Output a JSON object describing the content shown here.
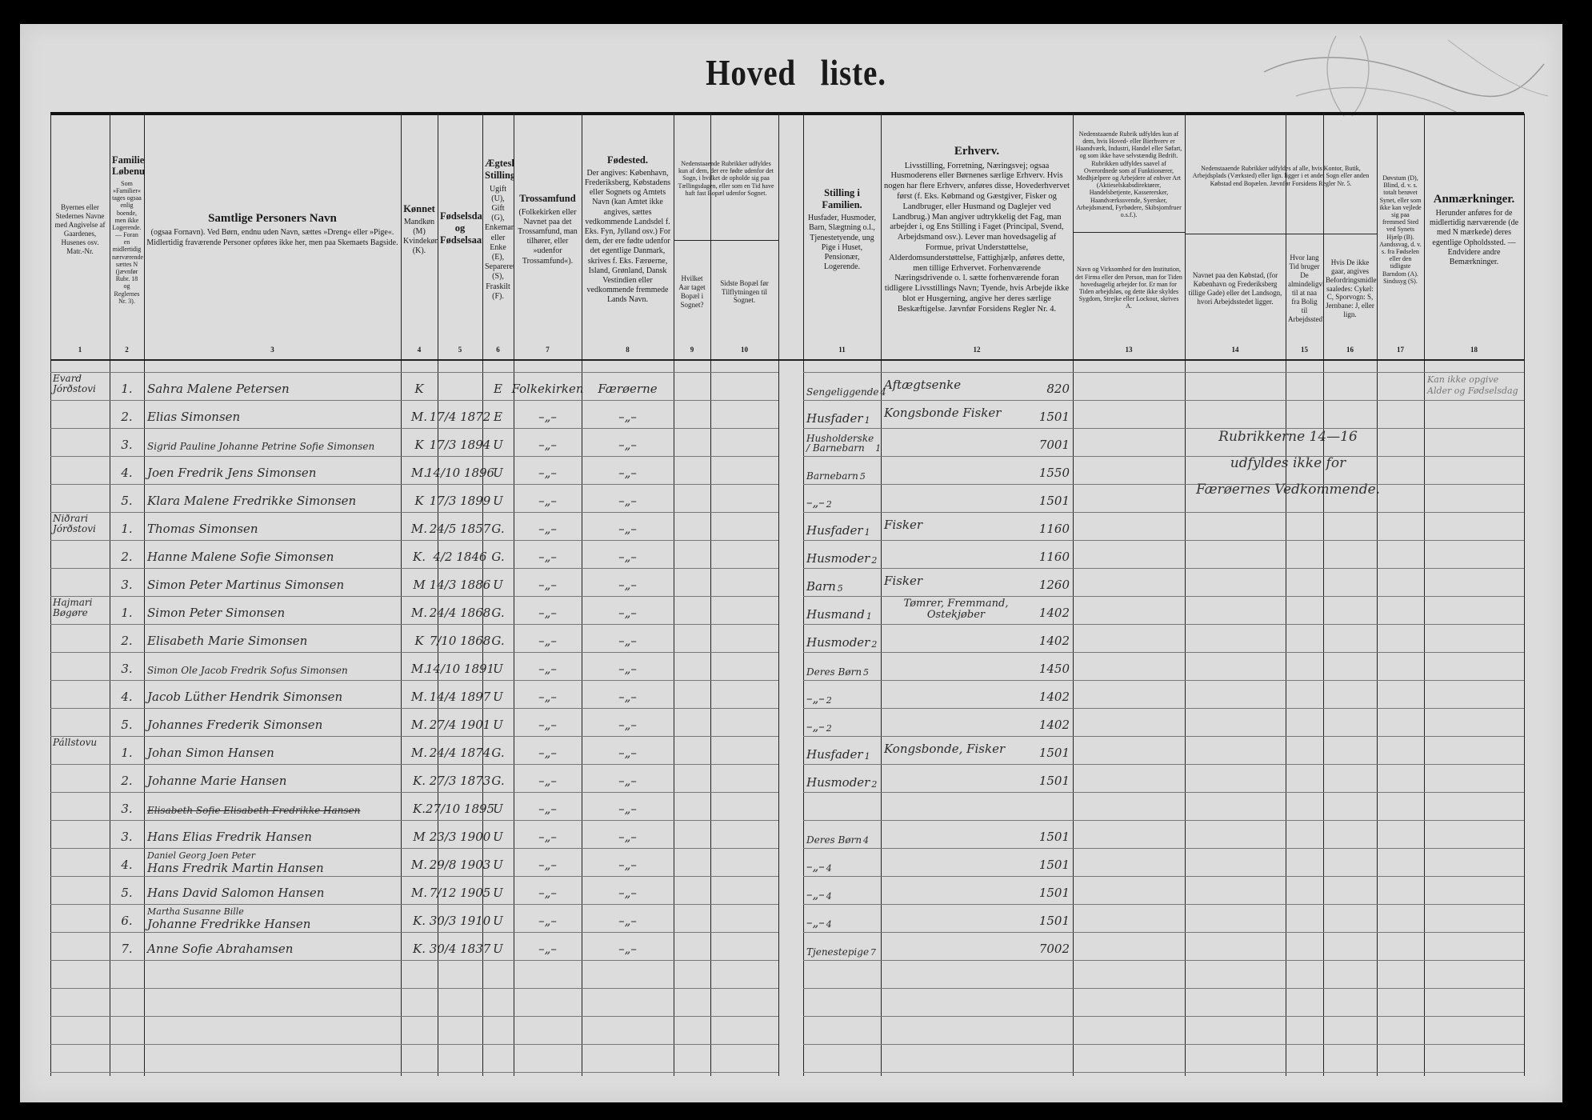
{
  "title": {
    "part1": "Hoved",
    "part2": "liste."
  },
  "header": {
    "c1": {
      "body": "Byernes eller Stedernes Navne med Angivelse af Gaardenes, Husenes osv. Matr.-Nr.",
      "num": "1"
    },
    "c2": {
      "title": "Familiernes Løbenumre.",
      "body": "Som »Familier« tages ogsaa enlig boende, men ikke Logerende. — Foran en midlertidig nærværende sættes N (jævnfør Rubr. 18 og Reglernes Nr. 3).",
      "num": "2"
    },
    "c3": {
      "title": "Samtlige Personers Navn",
      "body": "(ogsaa Fornavn). Ved Børn, endnu uden Navn, sættes »Dreng« eller »Pige«. Midlertidig fraværende Personer opføres ikke her, men paa Skemaets Bagside.",
      "num": "3"
    },
    "c4": {
      "title": "Kønnet",
      "body": "Mandkøn (M) Kvindekøn (K).",
      "num": "4"
    },
    "c5": {
      "title": "Fødselsdag og Fødselsaar.",
      "num": "5"
    },
    "c6": {
      "title": "Ægteskabelig Stilling.",
      "body": "Ugift (U), Gift (G), Enkemand eller Enke (E), Separeret (S), Fraskilt (F).",
      "num": "6"
    },
    "c7": {
      "title": "Trossamfund",
      "body": "(Folkekirken eller Navnet paa det Trossamfund, man tilhører, eller »udenfor Trossamfund«).",
      "num": "7"
    },
    "c8": {
      "title": "Fødested.",
      "body": "Der angives: København, Frederiksberg, Købstadens eller Sognets og Amtets Navn (kan Amtet ikke angives, sættes vedkommende Landsdel f. Eks. Fyn, Jylland osv.) For dem, der ere fødte udenfor det egentlige Danmark, skrives f. Eks. Færøerne, Island, Grønland, Dansk Vestindien eller vedkommende fremmede Lands Navn.",
      "num": "8"
    },
    "c9_10_note": "Nedenstaaende Rubrikker udfyldes kun af dem, der ere fødte udenfor det Sogn, i hvilket de opholde sig paa Tællingsdagen, eller som en Tid have haft fast Bopæl udenfor Sognet.",
    "c9": {
      "body": "Hvilket Aar taget Bopæl i Sognet?",
      "num": "9"
    },
    "c10": {
      "body": "Sidste Bopæl før Tilflytningen til Sognet.",
      "num": "10"
    },
    "c11": {
      "title": "Stilling i Familien.",
      "body": "Husfader, Husmoder, Barn, Slægtning o.l., Tjenestetyende, ung Pige i Huset, Pensionær, Logerende.",
      "num": "11"
    },
    "c12": {
      "title": "Erhverv.",
      "body": "Livsstilling, Forretning, Næringsvej; ogsaa Husmoderens eller Børnenes særlige Erhverv. Hvis nogen har flere Erhverv, anføres disse, Hovederhvervet først (f. Eks. Købmand og Gæstgiver, Fisker og Landbruger, eller Husmand og Daglejer ved Landbrug.) Man angiver udtrykkelig det Fag, man arbejder i, og Ens Stilling i Faget (Principal, Svend, Arbejdsmand osv.). Lever man hovedsagelig af Formue, privat Understøttelse, Alderdomsunderstøttelse, Fattighjælp, anføres dette, men tillige Erhvervet. Forhenværende Næringsdrivende o. l. sætte forhenværende foran tidligere Livsstillings Navn; Tyende, hvis Arbejde ikke blot er Husgerning, angive her deres særlige Beskæftigelse. Jævnfør Forsidens Regler Nr. 4.",
      "num": "12"
    },
    "c13_note": "Nedenstaaende Rubrik udfyldes kun af dem, hvis Hoved- eller Bierhverv er Haandværk, Industri, Handel eller Søfart, og som ikke have selvstændig Bedrift. Rubrikken udfyldes saavel af Overordnede som af Funktionærer, Medhjælpere og Arbejdere af enhver Art (Aktieselskabsdirektører, Handelsbetjente, Kasserersker, Haandværkssvende, Syersker, Arbejdsmænd, Fyrbødere, Skibsjomfruer o.s.f.).",
    "c13": {
      "body": "Navn og Virksomhed for den Institution, det Firma eller den Person, man for Tiden hovedsagelig arbejder for. Er man for Tiden arbejdsløs, og dette ikke skyldes Sygdom, Strejke eller Lockout, skrives A.",
      "num": "13"
    },
    "c14_16_note": "Nedenstaaende Rubrikker udfyldes af alle, hvis Kontor, Butik, Arbejdsplads (Værksted) eller lign. ligger i et andet Sogn eller anden Købstad end Bopælen. Jævnfør Forsidens Regler Nr. 5.",
    "c14": {
      "body": "Navnet paa den Købstad, (for København og Frederiksberg tillige Gade) eller det Landsogn, hvori Arbejdsstedet ligger.",
      "num": "14"
    },
    "c15": {
      "body": "Hvor lang Tid bruger De almindeligvis til at naa fra Bolig til Arbejdssted?",
      "num": "15"
    },
    "c16": {
      "body": "Hvis De ikke gaar, angives Befordringsmidlet saaledes: Cykel: C, Sporvogn: S, Jernbane: J, eller lign.",
      "num": "16"
    },
    "c17": {
      "body": "Døvstum (D), Blind, d. v. s. totalt berøvet Synet, eller som ikke kan vejlede sig paa fremmed Sted ved Synets Hjælp (B). Aandssvag, d. v. s. fra Fødselen eller den tidligste Barndom (A). Sindssyg (S).",
      "num": "17"
    },
    "c18": {
      "title": "Anmærkninger.",
      "body": "Herunder anføres for de midlertidig nærværende (de med N mærkede) deres egentlige Opholdssted. — Endvidere andre Bemærkninger.",
      "num": "18"
    }
  },
  "places": [
    {
      "row": 0,
      "text": "Evard Jórðstovi"
    },
    {
      "row": 5,
      "text": "Niðrari Jórðstovi"
    },
    {
      "row": 8,
      "text": "Hajmari Bøgøre"
    },
    {
      "row": 13,
      "text": "Pállstovu"
    }
  ],
  "rows": [
    {
      "nr": "1.",
      "name": "Sahra Malene Petersen",
      "sex": "K",
      "born": "",
      "marital": "E",
      "religion": "Folkekirken",
      "birthplace": "Færøerne",
      "position": "Sengeliggende",
      "pos_code": "4",
      "occupation": "Aftægtsenke",
      "code": "820"
    },
    {
      "nr": "2.",
      "name": "Elias Simonsen",
      "sex": "M.",
      "born": "17/4 1872",
      "marital": "E",
      "religion": "–„–",
      "birthplace": "–„–",
      "position": "Husfader",
      "pos_code": "1",
      "occupation": "Kongsbonde Fisker",
      "code": "1501"
    },
    {
      "nr": "3.",
      "name": "Sigrid Pauline Johanne Petrine Sofie Simonsen",
      "sex": "K",
      "born": "17/3 1894",
      "marital": "U",
      "religion": "–„–",
      "birthplace": "–„–",
      "position": "Husholderske / Barnebarn",
      "pos_code": "1",
      "occupation": "",
      "code": "7001"
    },
    {
      "nr": "4.",
      "name": "Joen Fredrik Jens Simonsen",
      "sex": "M.",
      "born": "14/10 1896",
      "marital": "U",
      "religion": "–„–",
      "birthplace": "–„–",
      "position": "Barnebarn",
      "pos_code": "5",
      "occupation": "",
      "code": "1550"
    },
    {
      "nr": "5.",
      "name": "Klara Malene Fredrikke Simonsen",
      "sex": "K",
      "born": "17/3 1899",
      "marital": "U",
      "religion": "–„–",
      "birthplace": "–„–",
      "position": "–„–",
      "pos_code": "2",
      "occupation": "",
      "code": "1501"
    },
    {
      "nr": "1.",
      "name": "Thomas Simonsen",
      "sex": "M.",
      "born": "24/5 1857",
      "marital": "G.",
      "religion": "–„–",
      "birthplace": "–„–",
      "position": "Husfader",
      "pos_code": "1",
      "occupation": "Fisker",
      "code": "1160"
    },
    {
      "nr": "2.",
      "name": "Hanne Malene Sofie Simonsen",
      "sex": "K.",
      "born": "4/2 1846",
      "marital": "G.",
      "religion": "–„–",
      "birthplace": "–„–",
      "position": "Husmoder",
      "pos_code": "2",
      "occupation": "",
      "code": "1160"
    },
    {
      "nr": "3.",
      "name": "Simon Peter Martinus Simonsen",
      "sex": "M",
      "born": "14/3 1886",
      "marital": "U",
      "religion": "–„–",
      "birthplace": "–„–",
      "position": "Barn",
      "pos_code": "5",
      "occupation": "Fisker",
      "code": "1260"
    },
    {
      "nr": "1.",
      "name": "Simon Peter Simonsen",
      "sex": "M.",
      "born": "24/4 1868",
      "marital": "G.",
      "religion": "–„–",
      "birthplace": "–„–",
      "position": "Husmand",
      "pos_code": "1",
      "occupation": "Tømrer, Fremmand, Ostekjøber",
      "code": "1402"
    },
    {
      "nr": "2.",
      "name": "Elisabeth Marie Simonsen",
      "sex": "K",
      "born": "7/10 1868",
      "marital": "G.",
      "religion": "–„–",
      "birthplace": "–„–",
      "position": "Husmoder",
      "pos_code": "2",
      "occupation": "",
      "code": "1402"
    },
    {
      "nr": "3.",
      "name": "Simon Ole Jacob Fredrik Sofus Simonsen",
      "sex": "M.",
      "born": "14/10 1891",
      "marital": "U",
      "religion": "–„–",
      "birthplace": "–„–",
      "position": "Deres Børn",
      "pos_code": "5",
      "occupation": "",
      "code": "1450"
    },
    {
      "nr": "4.",
      "name": "Jacob Lüther Hendrik Simonsen",
      "sex": "M.",
      "born": "14/4 1897",
      "marital": "U",
      "religion": "–„–",
      "birthplace": "–„–",
      "position": "–„–",
      "pos_code": "2",
      "occupation": "",
      "code": "1402"
    },
    {
      "nr": "5.",
      "name": "Johannes Frederik Simonsen",
      "sex": "M.",
      "born": "27/4 1901",
      "marital": "U",
      "religion": "–„–",
      "birthplace": "–„–",
      "position": "–„–",
      "pos_code": "2",
      "occupation": "",
      "code": "1402"
    },
    {
      "nr": "1.",
      "name": "Johan Simon Hansen",
      "sex": "M.",
      "born": "24/4 1874",
      "marital": "G.",
      "religion": "–„–",
      "birthplace": "–„–",
      "position": "Husfader",
      "pos_code": "1",
      "occupation": "Kongsbonde, Fisker",
      "code": "1501"
    },
    {
      "nr": "2.",
      "name": "Johanne Marie Hansen",
      "sex": "K.",
      "born": "27/3 1873",
      "marital": "G.",
      "religion": "–„–",
      "birthplace": "–„–",
      "position": "Husmoder",
      "pos_code": "2",
      "occupation": "",
      "code": "1501"
    },
    {
      "nr": "3.",
      "name": "Elisabeth Sofie Elisabeth Fredrikke Hansen",
      "sex": "K.",
      "born": "27/10 1895",
      "marital": "U",
      "religion": "–„–",
      "birthplace": "–„–",
      "position": "",
      "pos_code": "",
      "occupation": "",
      "code": "",
      "struck": true
    },
    {
      "nr": "3.",
      "name": "Hans Elias Fredrik Hansen",
      "sex": "M",
      "born": "23/3 1900",
      "marital": "U",
      "religion": "–„–",
      "birthplace": "–„–",
      "position": "Deres Børn",
      "pos_code": "4",
      "occupation": "",
      "code": "1501"
    },
    {
      "nr": "4.",
      "name_above": "Daniel Georg Joen Peter",
      "name": "Hans Fredrik Martin Hansen",
      "sex": "M.",
      "born": "29/8 1903",
      "marital": "U",
      "religion": "–„–",
      "birthplace": "–„–",
      "position": "–„–",
      "pos_code": "4",
      "occupation": "",
      "code": "1501"
    },
    {
      "nr": "5.",
      "name": "Hans David Salomon Hansen",
      "sex": "M.",
      "born": "7/12 1905",
      "marital": "U",
      "religion": "–„–",
      "birthplace": "–„–",
      "position": "–„–",
      "pos_code": "4",
      "occupation": "",
      "code": "1501"
    },
    {
      "nr": "6.",
      "name_above": "Martha Susanne Bille",
      "name": "Johanne Fredrikke Hansen",
      "sex": "K.",
      "born": "30/3 1910",
      "marital": "U",
      "religion": "–„–",
      "birthplace": "–„–",
      "position": "–„–",
      "pos_code": "4",
      "occupation": "",
      "code": "1501"
    },
    {
      "nr": "7.",
      "name": "Anne Sofie Abrahamsen",
      "sex": "K.",
      "born": "30/4 1837",
      "marital": "U",
      "religion": "–„–",
      "birthplace": "–„–",
      "position": "Tjenestepige",
      "pos_code": "7",
      "occupation": "",
      "code": "7002"
    }
  ],
  "remark_row1": {
    "line1": "Kan ikke opgive",
    "line2": "Alder og Fødselsdag"
  },
  "note_14_16": {
    "line1": "Rubrikkerne 14—16",
    "line2": "udfyldes ikke for",
    "line3": "Færøernes Vedkommende."
  }
}
